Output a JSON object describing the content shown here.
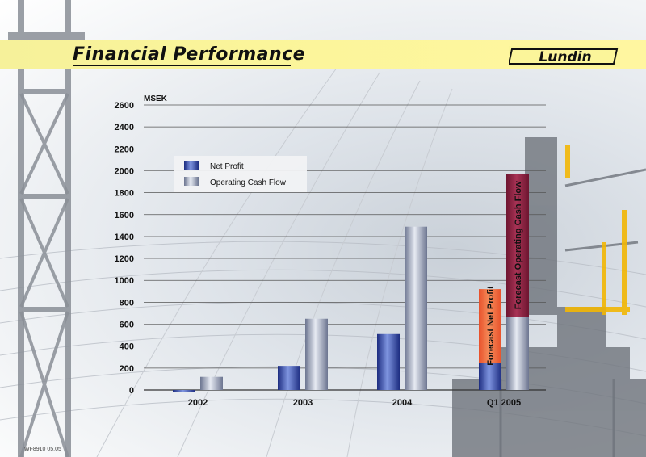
{
  "header": {
    "title": "Financial Performance",
    "logo_text": "Lundin"
  },
  "footer": {
    "code": "WF8910 05.05"
  },
  "colors": {
    "net_profit": "#2a3f9e",
    "operating_cash_flow": "#8a93a8",
    "forecast_net_profit": "#e2572a",
    "forecast_operating_cash_flow": "#8a1f3a"
  },
  "chart_data": {
    "type": "bar",
    "ylabel": "MSEK",
    "ylim": [
      0,
      2600
    ],
    "yticks": [
      0,
      200,
      400,
      600,
      800,
      1000,
      1200,
      1400,
      1600,
      1800,
      2000,
      2200,
      2400,
      2600
    ],
    "grid": true,
    "legend_position": "top-left",
    "categories": [
      "2002",
      "2003",
      "2004",
      "Q1 2005"
    ],
    "series": [
      {
        "name": "Net Profit",
        "values": [
          -20,
          220,
          510,
          250
        ]
      },
      {
        "name": "Operating Cash Flow",
        "values": [
          120,
          650,
          1490,
          670
        ]
      }
    ],
    "forecast": [
      {
        "label": "Forecast Net Profit",
        "category": "Q1 2005",
        "series": "Net Profit",
        "from": 250,
        "to": 920
      },
      {
        "label": "Forecast Operating Cash Flow",
        "category": "Q1 2005",
        "series": "Operating Cash Flow",
        "from": 670,
        "to": 1970
      }
    ]
  }
}
